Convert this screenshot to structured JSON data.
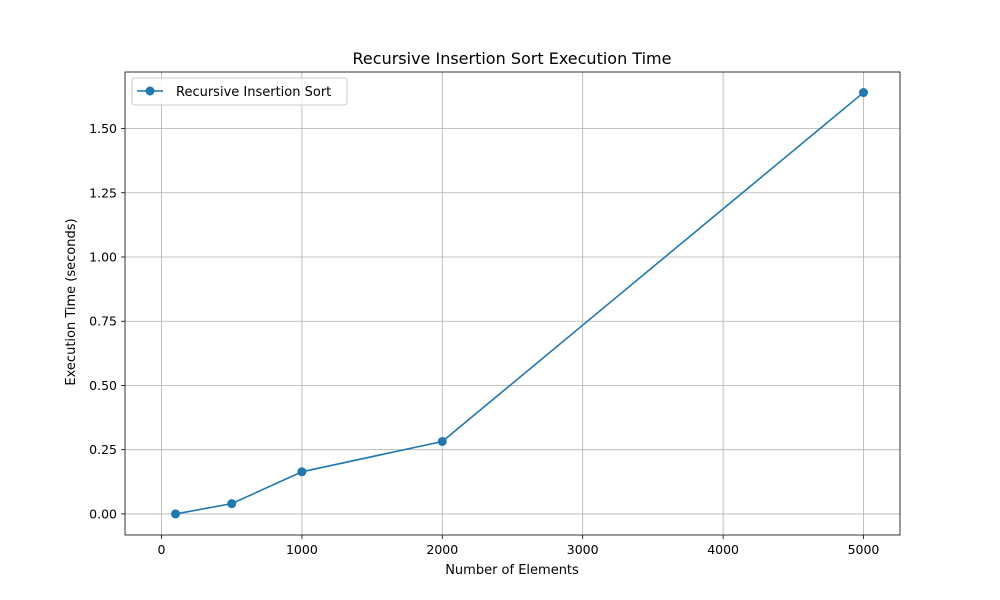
{
  "chart_data": {
    "type": "line",
    "title": "Recursive Insertion Sort Execution Time",
    "xlabel": "Number of Elements",
    "ylabel": "Execution Time (seconds)",
    "xlim": [
      -260,
      5260
    ],
    "ylim": [
      -0.082,
      1.72
    ],
    "x_ticks": [
      0,
      1000,
      2000,
      3000,
      4000,
      5000
    ],
    "x_tick_labels": [
      "0",
      "1000",
      "2000",
      "3000",
      "4000",
      "5000"
    ],
    "y_ticks": [
      0.0,
      0.25,
      0.5,
      0.75,
      1.0,
      1.25,
      1.5
    ],
    "y_tick_labels": [
      "0.00",
      "0.25",
      "0.50",
      "0.75",
      "1.00",
      "1.25",
      "1.50"
    ],
    "grid": true,
    "legend_position": "top-left",
    "series": [
      {
        "name": "Recursive Insertion Sort",
        "color": "#1f77b4",
        "marker": "circle",
        "x": [
          100,
          500,
          1000,
          2000,
          5000
        ],
        "y": [
          0.0,
          0.04,
          0.164,
          0.282,
          1.64
        ]
      }
    ]
  }
}
